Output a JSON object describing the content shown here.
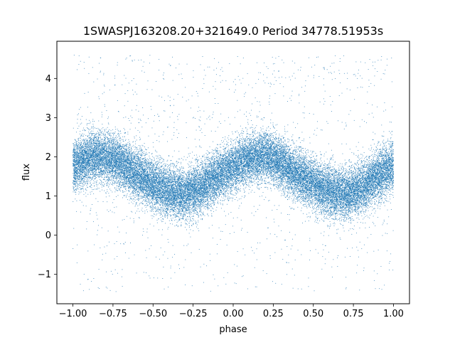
{
  "chart_data": {
    "type": "scatter",
    "title": "1SWASPJ163208.20+321649.0 Period 34778.51953s",
    "xlabel": "phase",
    "ylabel": "flux",
    "xlim": [
      -1.1,
      1.1
    ],
    "ylim": [
      -1.75,
      4.95
    ],
    "xticks": [
      -1.0,
      -0.75,
      -0.5,
      -0.25,
      0.0,
      0.25,
      0.5,
      0.75,
      1.0
    ],
    "xtick_labels": [
      "−1.00",
      "−0.75",
      "−0.50",
      "−0.25",
      "0.00",
      "0.25",
      "0.50",
      "0.75",
      "1.00"
    ],
    "yticks": [
      -1,
      0,
      1,
      2,
      3,
      4
    ],
    "ytick_labels": [
      "−1",
      "0",
      "1",
      "2",
      "3",
      "4"
    ],
    "grid": false,
    "marker_color": "#1f77b4",
    "phase_range": [
      -1.0,
      1.0
    ],
    "approx_point_count": 30000,
    "trend_phase": [
      -1.0,
      -0.9,
      -0.8,
      -0.7,
      -0.6,
      -0.5,
      -0.4,
      -0.3,
      -0.2,
      -0.1,
      0.0,
      0.1,
      0.2,
      0.3,
      0.4,
      0.5,
      0.6,
      0.7,
      0.8,
      0.9,
      1.0
    ],
    "trend_flux": [
      1.75,
      1.95,
      2.02,
      1.85,
      1.55,
      1.3,
      1.1,
      1.05,
      1.2,
      1.5,
      1.75,
      1.95,
      2.02,
      1.85,
      1.55,
      1.3,
      1.1,
      1.05,
      1.2,
      1.5,
      1.75
    ],
    "scatter_std": 0.32,
    "outlier_fraction": 0.04,
    "outlier_flux_range": [
      -1.45,
      4.6
    ]
  }
}
